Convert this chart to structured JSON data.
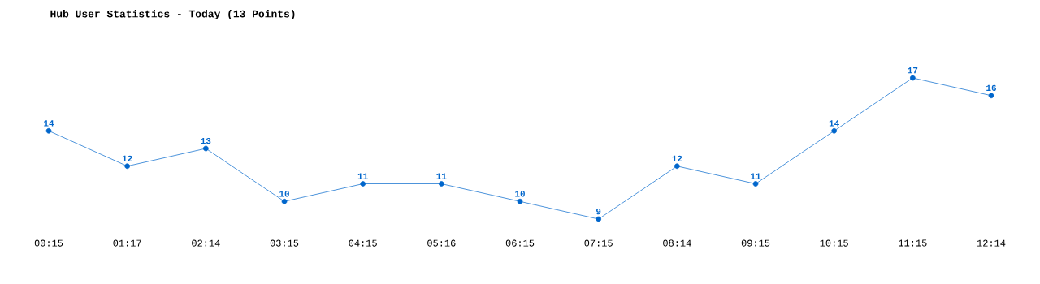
{
  "chart_data": {
    "type": "line",
    "title": "Hub User Statistics - Today (13 Points)",
    "categories": [
      "00:15",
      "01:17",
      "02:14",
      "03:15",
      "04:15",
      "05:16",
      "06:15",
      "07:15",
      "08:14",
      "09:15",
      "10:15",
      "11:15",
      "12:14"
    ],
    "values": [
      14,
      12,
      13,
      10,
      11,
      11,
      10,
      9,
      12,
      11,
      14,
      17,
      16
    ],
    "color": "#0066cc",
    "marker": "circle",
    "line_style": "solid",
    "data_labels": true,
    "grid": false
  }
}
